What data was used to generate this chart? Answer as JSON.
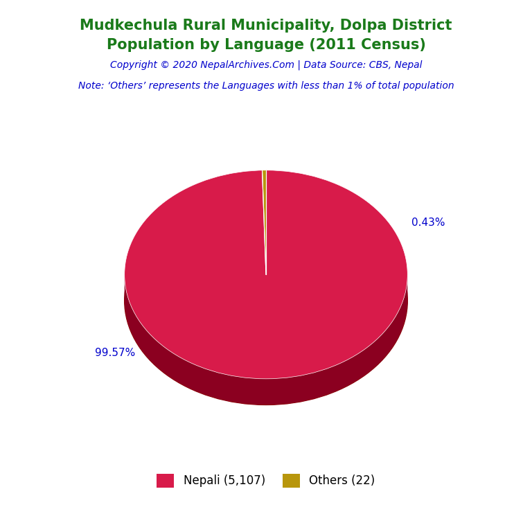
{
  "title_line1": "Mudkechula Rural Municipality, Dolpa District",
  "title_line2": "Population by Language (2011 Census)",
  "copyright": "Copyright © 2020 NepalArchives.Com | Data Source: CBS, Nepal",
  "note": "Note: ‘Others’ represents the Languages with less than 1% of total population",
  "labels": [
    "Nepali (5,107)",
    "Others (22)"
  ],
  "values": [
    5107,
    22
  ],
  "percentages": [
    "99.57%",
    "0.43%"
  ],
  "colors": [
    "#D81B4A",
    "#B8960C"
  ],
  "side_colors": [
    "#8B0020",
    "#7A6408"
  ],
  "base_color": "#8B0000",
  "background_color": "#FFFFFF",
  "title_color": "#1a7a1a",
  "copyright_color": "#0000CC",
  "note_color": "#0000CC",
  "pct_color": "#0000CC",
  "title_fontsize": 15,
  "copyright_fontsize": 10,
  "note_fontsize": 10,
  "pct_fontsize": 11,
  "legend_fontsize": 12
}
